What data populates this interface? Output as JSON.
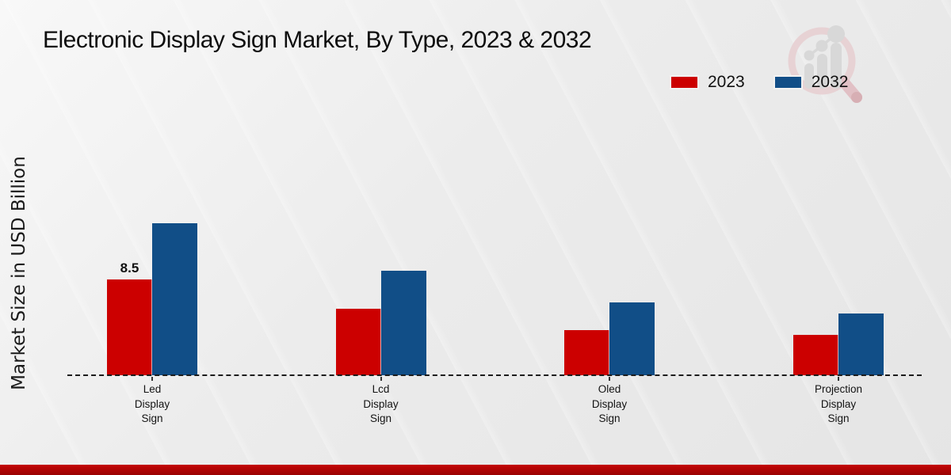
{
  "title": "Electronic Display Sign Market, By Type, 2023 & 2032",
  "y_axis_label": "Market Size in USD Billion",
  "legend": [
    {
      "label": "2023",
      "color": "#cc0000"
    },
    {
      "label": "2032",
      "color": "#114e87"
    }
  ],
  "watermark": {
    "icon": "magnifier-bar-chart-logo"
  },
  "footer": {
    "accent_color": "#b00303"
  },
  "chart_data": {
    "type": "bar",
    "categories": [
      "Led Display Sign",
      "Lcd Display Sign",
      "Oled Display Sign",
      "Projection Display Sign"
    ],
    "series": [
      {
        "name": "2023",
        "color": "#cc0000",
        "values": [
          8.5,
          5.9,
          4.0,
          3.6
        ]
      },
      {
        "name": "2032",
        "color": "#114e87",
        "values": [
          13.5,
          9.3,
          6.5,
          5.5
        ]
      }
    ],
    "point_labels": [
      {
        "series": "2023",
        "category": "Led Display Sign",
        "text": "8.5"
      }
    ],
    "title": "Electronic Display Sign Market, By Type, 2023 & 2032",
    "xlabel": "",
    "ylabel": "Market Size in USD Billion",
    "ylim": [
      0,
      15
    ],
    "grid": false,
    "legend_position": "top-right",
    "x_axis_style": "dashed-baseline"
  }
}
